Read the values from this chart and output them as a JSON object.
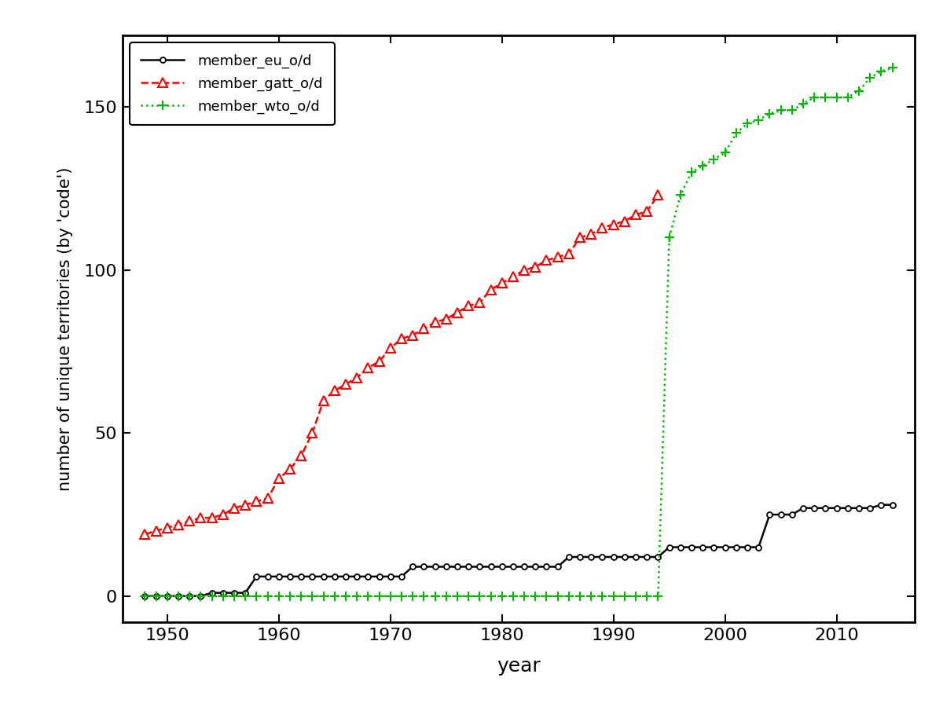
{
  "eu_years": [
    1948,
    1949,
    1950,
    1951,
    1952,
    1953,
    1954,
    1955,
    1956,
    1957,
    1958,
    1959,
    1960,
    1961,
    1962,
    1963,
    1964,
    1965,
    1966,
    1967,
    1968,
    1969,
    1970,
    1971,
    1972,
    1973,
    1974,
    1975,
    1976,
    1977,
    1978,
    1979,
    1980,
    1981,
    1982,
    1983,
    1984,
    1985,
    1986,
    1987,
    1988,
    1989,
    1990,
    1991,
    1992,
    1993,
    1994,
    1995,
    1996,
    1997,
    1998,
    1999,
    2000,
    2001,
    2002,
    2003,
    2004,
    2005,
    2006,
    2007,
    2008,
    2009,
    2010,
    2011,
    2012,
    2013,
    2014,
    2015
  ],
  "eu_values": [
    0,
    0,
    0,
    0,
    0,
    0,
    1,
    1,
    1,
    1,
    6,
    6,
    6,
    6,
    6,
    6,
    6,
    6,
    6,
    6,
    6,
    6,
    6,
    6,
    9,
    9,
    9,
    9,
    9,
    9,
    9,
    9,
    9,
    9,
    9,
    9,
    9,
    9,
    12,
    12,
    12,
    12,
    12,
    12,
    12,
    12,
    12,
    15,
    15,
    15,
    15,
    15,
    15,
    15,
    15,
    15,
    25,
    25,
    25,
    27,
    27,
    27,
    27,
    27,
    27,
    27,
    28,
    28
  ],
  "gatt_years": [
    1948,
    1949,
    1950,
    1951,
    1952,
    1953,
    1954,
    1955,
    1956,
    1957,
    1958,
    1959,
    1960,
    1961,
    1962,
    1963,
    1964,
    1965,
    1966,
    1967,
    1968,
    1969,
    1970,
    1971,
    1972,
    1973,
    1974,
    1975,
    1976,
    1977,
    1978,
    1979,
    1980,
    1981,
    1982,
    1983,
    1984,
    1985,
    1986,
    1987,
    1988,
    1989,
    1990,
    1991,
    1992,
    1993,
    1994
  ],
  "gatt_values": [
    19,
    20,
    21,
    22,
    23,
    24,
    24,
    25,
    27,
    28,
    29,
    30,
    36,
    39,
    43,
    50,
    60,
    63,
    65,
    67,
    70,
    72,
    76,
    79,
    80,
    82,
    84,
    85,
    87,
    89,
    90,
    94,
    96,
    98,
    100,
    101,
    103,
    104,
    105,
    110,
    111,
    113,
    114,
    115,
    117,
    118,
    123
  ],
  "wto_years_low": [
    1948,
    1949,
    1950,
    1951,
    1952,
    1953,
    1954,
    1955,
    1956,
    1957,
    1958,
    1959,
    1960,
    1961,
    1962,
    1963,
    1964,
    1965,
    1966,
    1967,
    1968,
    1969,
    1970,
    1971,
    1972,
    1973,
    1974,
    1975,
    1976,
    1977,
    1978,
    1979,
    1980,
    1981,
    1982,
    1983,
    1984,
    1985,
    1986,
    1987,
    1988,
    1989,
    1990,
    1991,
    1992,
    1993,
    1994,
    1995
  ],
  "wto_values_low": [
    0,
    0,
    0,
    0,
    0,
    0,
    0,
    0,
    0,
    0,
    0,
    0,
    0,
    0,
    0,
    0,
    0,
    0,
    0,
    0,
    0,
    0,
    0,
    0,
    0,
    0,
    0,
    0,
    0,
    0,
    0,
    0,
    0,
    0,
    0,
    0,
    0,
    0,
    0,
    0,
    0,
    0,
    0,
    0,
    0,
    0,
    0,
    110
  ],
  "wto_years_high": [
    1995,
    1996,
    1997,
    1998,
    1999,
    2000,
    2001,
    2002,
    2003,
    2004,
    2005,
    2006,
    2007,
    2008,
    2009,
    2010,
    2011,
    2012,
    2013,
    2014,
    2015
  ],
  "wto_values_high": [
    110,
    123,
    130,
    132,
    134,
    136,
    142,
    145,
    146,
    148,
    149,
    149,
    151,
    153,
    153,
    153,
    153,
    155,
    159,
    161,
    162
  ],
  "xlabel": "year",
  "ylabel": "number of unique territories (by 'code')",
  "ylim_min": -8,
  "ylim_max": 172,
  "xlim_min": 1946,
  "xlim_max": 2017,
  "yticks": [
    0,
    50,
    100,
    150
  ],
  "xticks": [
    1950,
    1960,
    1970,
    1980,
    1990,
    2000,
    2010
  ],
  "eu_color": "#000000",
  "gatt_color": "#FF0000",
  "wto_color": "#00BB00",
  "bg_color": "#FFFFFF"
}
